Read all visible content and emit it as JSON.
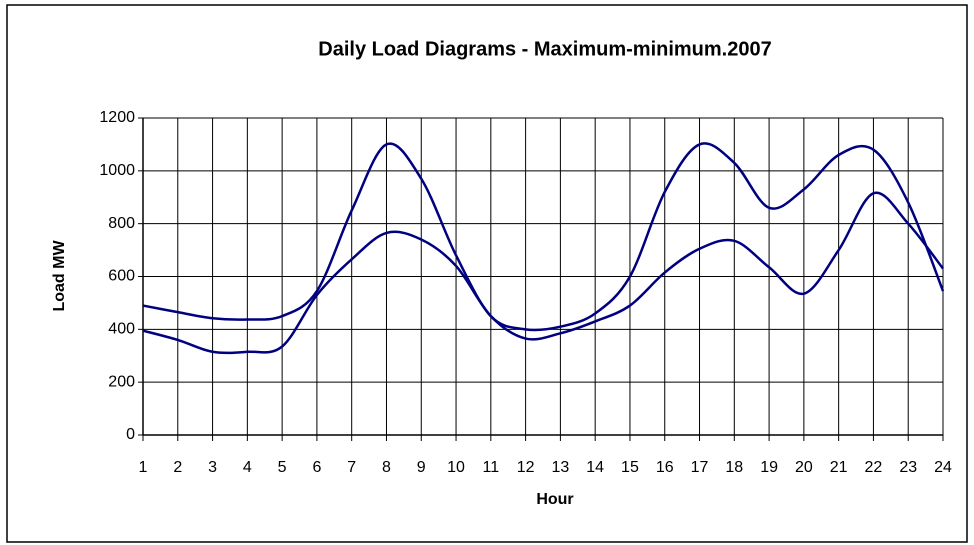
{
  "chart_data": {
    "type": "line",
    "title": "Daily Load Diagrams - Maximum-minimum.2007",
    "x_label": "Hour",
    "y_label": "Load MW",
    "x": [
      1,
      2,
      3,
      4,
      5,
      6,
      7,
      8,
      9,
      10,
      11,
      12,
      13,
      14,
      15,
      16,
      17,
      18,
      19,
      20,
      21,
      22,
      23,
      24
    ],
    "xlim": [
      1,
      24
    ],
    "xticks": [
      1,
      2,
      3,
      4,
      5,
      6,
      7,
      8,
      9,
      10,
      11,
      12,
      13,
      14,
      15,
      16,
      17,
      18,
      19,
      20,
      21,
      22,
      23,
      24
    ],
    "ylim": [
      0,
      1200
    ],
    "yticks": [
      0,
      200,
      400,
      600,
      800,
      1000,
      1200
    ],
    "grid": true,
    "series": [
      {
        "color": "#000080",
        "values": [
          490,
          465,
          442,
          437,
          450,
          545,
          850,
          1100,
          970,
          680,
          450,
          400,
          410,
          460,
          600,
          920,
          1100,
          1030,
          860,
          930,
          1060,
          1080,
          880,
          545
        ]
      },
      {
        "color": "#000080",
        "values": [
          395,
          360,
          315,
          315,
          335,
          530,
          665,
          765,
          740,
          640,
          450,
          365,
          385,
          430,
          490,
          615,
          705,
          735,
          635,
          535,
          700,
          915,
          800,
          630
        ]
      }
    ]
  }
}
